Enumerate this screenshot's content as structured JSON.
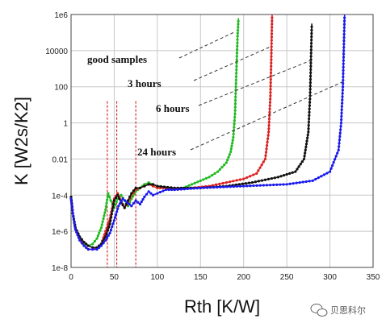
{
  "chart_data": {
    "type": "line",
    "xlabel": "Rth [K/W]",
    "ylabel": "K [W2s/K2]",
    "xlim": [
      0,
      350
    ],
    "ylim_log10": [
      -8,
      6
    ],
    "y_scale": "log",
    "grid": true,
    "x_ticks": [
      "0",
      "50",
      "100",
      "150",
      "200",
      "250",
      "300",
      "350"
    ],
    "y_ticks": [
      "1e-8",
      "1e-6",
      "1e-4",
      "0.01",
      "1",
      "100",
      "10000",
      "1e6"
    ],
    "vertical_markers": [
      42,
      53,
      75
    ],
    "annotations": [
      "good samples",
      "3 hours",
      "6 hours",
      "24 hours"
    ],
    "series": [
      {
        "color": "#22bb22",
        "points": [
          [
            0,
            -4.1
          ],
          [
            2,
            -5.0
          ],
          [
            5,
            -5.8
          ],
          [
            10,
            -6.4
          ],
          [
            15,
            -6.7
          ],
          [
            20,
            -6.8
          ],
          [
            25,
            -6.7
          ],
          [
            30,
            -6.4
          ],
          [
            35,
            -5.8
          ],
          [
            40,
            -4.8
          ],
          [
            43,
            -3.9
          ],
          [
            46,
            -4.3
          ],
          [
            50,
            -4.7
          ],
          [
            54,
            -4.2
          ],
          [
            58,
            -4.0
          ],
          [
            62,
            -4.3
          ],
          [
            66,
            -4.6
          ],
          [
            70,
            -4.2
          ],
          [
            75,
            -3.8
          ],
          [
            80,
            -3.6
          ],
          [
            85,
            -3.4
          ],
          [
            90,
            -3.3
          ],
          [
            95,
            -3.4
          ],
          [
            100,
            -3.5
          ],
          [
            110,
            -3.6
          ],
          [
            120,
            -3.7
          ],
          [
            130,
            -3.6
          ],
          [
            140,
            -3.4
          ],
          [
            150,
            -3.2
          ],
          [
            160,
            -3.0
          ],
          [
            170,
            -2.7
          ],
          [
            180,
            -2.2
          ],
          [
            185,
            -1.6
          ],
          [
            188,
            -0.8
          ],
          [
            190,
            0.5
          ],
          [
            191,
            2.0
          ],
          [
            192,
            3.5
          ],
          [
            193,
            4.8
          ],
          [
            194,
            5.8
          ]
        ]
      },
      {
        "color": "#dd2222",
        "points": [
          [
            0,
            -4.1
          ],
          [
            2,
            -5.0
          ],
          [
            5,
            -5.8
          ],
          [
            10,
            -6.4
          ],
          [
            15,
            -6.8
          ],
          [
            20,
            -7.0
          ],
          [
            25,
            -7.0
          ],
          [
            30,
            -6.9
          ],
          [
            35,
            -6.7
          ],
          [
            40,
            -6.0
          ],
          [
            45,
            -5.3
          ],
          [
            50,
            -4.2
          ],
          [
            54,
            -3.9
          ],
          [
            58,
            -4.3
          ],
          [
            62,
            -4.7
          ],
          [
            66,
            -4.4
          ],
          [
            70,
            -4.0
          ],
          [
            75,
            -3.7
          ],
          [
            80,
            -3.6
          ],
          [
            85,
            -3.5
          ],
          [
            90,
            -3.4
          ],
          [
            95,
            -3.5
          ],
          [
            100,
            -3.6
          ],
          [
            110,
            -3.6
          ],
          [
            120,
            -3.7
          ],
          [
            140,
            -3.6
          ],
          [
            160,
            -3.5
          ],
          [
            180,
            -3.3
          ],
          [
            200,
            -3.1
          ],
          [
            215,
            -2.8
          ],
          [
            225,
            -2.0
          ],
          [
            229,
            -0.5
          ],
          [
            231,
            1.5
          ],
          [
            232,
            3.5
          ],
          [
            233,
            6.0
          ]
        ]
      },
      {
        "color": "#111111",
        "points": [
          [
            0,
            -4.1
          ],
          [
            2,
            -5.0
          ],
          [
            5,
            -5.8
          ],
          [
            10,
            -6.3
          ],
          [
            15,
            -6.6
          ],
          [
            20,
            -6.8
          ],
          [
            25,
            -6.9
          ],
          [
            30,
            -6.9
          ],
          [
            35,
            -6.7
          ],
          [
            40,
            -6.3
          ],
          [
            45,
            -5.6
          ],
          [
            50,
            -4.3
          ],
          [
            54,
            -4.0
          ],
          [
            58,
            -4.4
          ],
          [
            62,
            -4.7
          ],
          [
            66,
            -4.3
          ],
          [
            70,
            -3.9
          ],
          [
            75,
            -3.6
          ],
          [
            80,
            -3.6
          ],
          [
            85,
            -3.5
          ],
          [
            90,
            -3.4
          ],
          [
            95,
            -3.4
          ],
          [
            100,
            -3.5
          ],
          [
            120,
            -3.6
          ],
          [
            150,
            -3.6
          ],
          [
            180,
            -3.5
          ],
          [
            210,
            -3.3
          ],
          [
            240,
            -3.0
          ],
          [
            260,
            -2.7
          ],
          [
            270,
            -2.0
          ],
          [
            275,
            -0.5
          ],
          [
            277,
            1.5
          ],
          [
            278,
            3.5
          ],
          [
            279,
            5.5
          ]
        ]
      },
      {
        "color": "#1a1aee",
        "points": [
          [
            0,
            -4.2
          ],
          [
            2,
            -5.0
          ],
          [
            5,
            -5.9
          ],
          [
            10,
            -6.5
          ],
          [
            15,
            -6.8
          ],
          [
            20,
            -7.0
          ],
          [
            25,
            -7.0
          ],
          [
            30,
            -7.0
          ],
          [
            35,
            -6.8
          ],
          [
            40,
            -6.5
          ],
          [
            45,
            -6.1
          ],
          [
            50,
            -5.4
          ],
          [
            55,
            -4.6
          ],
          [
            60,
            -4.2
          ],
          [
            65,
            -4.4
          ],
          [
            70,
            -4.6
          ],
          [
            75,
            -4.3
          ],
          [
            80,
            -4.5
          ],
          [
            85,
            -4.1
          ],
          [
            90,
            -3.8
          ],
          [
            95,
            -4.0
          ],
          [
            100,
            -3.9
          ],
          [
            110,
            -3.7
          ],
          [
            120,
            -3.7
          ],
          [
            150,
            -3.6
          ],
          [
            200,
            -3.5
          ],
          [
            250,
            -3.4
          ],
          [
            280,
            -3.2
          ],
          [
            300,
            -2.7
          ],
          [
            310,
            -1.5
          ],
          [
            313,
            0.0
          ],
          [
            315,
            2.0
          ],
          [
            316,
            4.0
          ],
          [
            317,
            6.0
          ]
        ]
      }
    ]
  },
  "watermark": {
    "icon": "wechat-icon",
    "text": "贝思科尔"
  }
}
